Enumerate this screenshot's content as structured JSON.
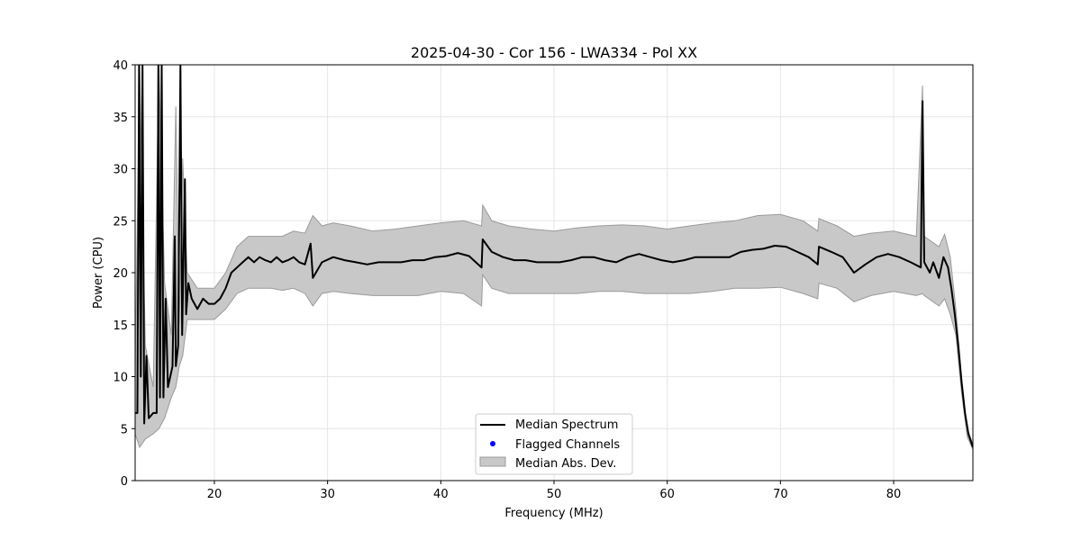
{
  "chart_data": {
    "type": "line",
    "title": "2025-04-30 - Cor 156 - LWA334 - Pol XX",
    "xlabel": "Frequency (MHz)",
    "ylabel": "Power (CPU)",
    "xlim": [
      13,
      87
    ],
    "ylim": [
      0,
      40
    ],
    "xticks": [
      20,
      30,
      40,
      50,
      60,
      70,
      80
    ],
    "yticks": [
      0,
      5,
      10,
      15,
      20,
      25,
      30,
      35,
      40
    ],
    "grid": true,
    "legend_position": "lower-center",
    "legend": {
      "median": "Median Spectrum",
      "flagged": "Flagged Channels",
      "mad": "Median Abs. Dev."
    },
    "colors": {
      "median": "#000000",
      "flagged": "#0000ff",
      "mad_fill": "#c8c8c8",
      "mad_edge": "#9a9a9a",
      "grid": "#e6e6e6"
    },
    "series": [
      {
        "name": "Median Spectrum",
        "points": [
          [
            13.0,
            6.5
          ],
          [
            13.2,
            6.5
          ],
          [
            13.35,
            40
          ],
          [
            13.5,
            10
          ],
          [
            13.65,
            40
          ],
          [
            13.8,
            5.5
          ],
          [
            14.0,
            12
          ],
          [
            14.2,
            6
          ],
          [
            14.6,
            6.5
          ],
          [
            14.9,
            6.5
          ],
          [
            15.05,
            40
          ],
          [
            15.2,
            8
          ],
          [
            15.35,
            40
          ],
          [
            15.5,
            8
          ],
          [
            15.7,
            17.5
          ],
          [
            15.9,
            9
          ],
          [
            16.1,
            10
          ],
          [
            16.3,
            11
          ],
          [
            16.5,
            23.5
          ],
          [
            16.6,
            11
          ],
          [
            16.8,
            13
          ],
          [
            17.0,
            40
          ],
          [
            17.15,
            14
          ],
          [
            17.4,
            29
          ],
          [
            17.5,
            16
          ],
          [
            17.7,
            19
          ],
          [
            18.0,
            17.5
          ],
          [
            18.5,
            16.5
          ],
          [
            19.0,
            17.5
          ],
          [
            19.5,
            17
          ],
          [
            20.0,
            17
          ],
          [
            20.5,
            17.5
          ],
          [
            21.0,
            18.5
          ],
          [
            21.5,
            20
          ],
          [
            22.0,
            20.5
          ],
          [
            22.5,
            21
          ],
          [
            23.0,
            21.5
          ],
          [
            23.5,
            21
          ],
          [
            24.0,
            21.5
          ],
          [
            24.5,
            21.2
          ],
          [
            25.0,
            21
          ],
          [
            25.5,
            21.5
          ],
          [
            26.0,
            21
          ],
          [
            26.5,
            21.2
          ],
          [
            27.0,
            21.5
          ],
          [
            27.5,
            21
          ],
          [
            28.0,
            20.8
          ],
          [
            28.5,
            22.8
          ],
          [
            28.7,
            19.5
          ],
          [
            29.5,
            21
          ],
          [
            30.5,
            21.5
          ],
          [
            31.5,
            21.2
          ],
          [
            32.5,
            21
          ],
          [
            33.5,
            20.8
          ],
          [
            34.5,
            21
          ],
          [
            35.5,
            21
          ],
          [
            36.5,
            21
          ],
          [
            37.5,
            21.2
          ],
          [
            38.5,
            21.2
          ],
          [
            39.5,
            21.5
          ],
          [
            40.5,
            21.6
          ],
          [
            41.5,
            21.9
          ],
          [
            42.5,
            21.6
          ],
          [
            43.6,
            20.5
          ],
          [
            43.7,
            23.2
          ],
          [
            44.5,
            22
          ],
          [
            45.5,
            21.5
          ],
          [
            46.5,
            21.2
          ],
          [
            47.5,
            21.2
          ],
          [
            48.5,
            21
          ],
          [
            49.5,
            21
          ],
          [
            50.5,
            21
          ],
          [
            51.5,
            21.2
          ],
          [
            52.5,
            21.5
          ],
          [
            53.5,
            21.5
          ],
          [
            54.5,
            21.2
          ],
          [
            55.5,
            21
          ],
          [
            56.5,
            21.5
          ],
          [
            57.5,
            21.8
          ],
          [
            58.5,
            21.5
          ],
          [
            59.5,
            21.2
          ],
          [
            60.5,
            21
          ],
          [
            61.5,
            21.2
          ],
          [
            62.5,
            21.5
          ],
          [
            63.5,
            21.5
          ],
          [
            64.5,
            21.5
          ],
          [
            65.5,
            21.5
          ],
          [
            66.5,
            22
          ],
          [
            67.5,
            22.2
          ],
          [
            68.5,
            22.3
          ],
          [
            69.5,
            22.6
          ],
          [
            70.5,
            22.5
          ],
          [
            71.5,
            22
          ],
          [
            72.5,
            21.5
          ],
          [
            73.3,
            20.8
          ],
          [
            73.4,
            22.5
          ],
          [
            74.5,
            22
          ],
          [
            75.5,
            21.5
          ],
          [
            76.5,
            20
          ],
          [
            77.5,
            20.8
          ],
          [
            78.5,
            21.5
          ],
          [
            79.5,
            21.8
          ],
          [
            80.5,
            21.5
          ],
          [
            81.5,
            21
          ],
          [
            82.4,
            20.5
          ],
          [
            82.55,
            36.5
          ],
          [
            82.7,
            21
          ],
          [
            83.2,
            20
          ],
          [
            83.5,
            21
          ],
          [
            84.0,
            19.5
          ],
          [
            84.4,
            21.5
          ],
          [
            84.8,
            20.5
          ],
          [
            85.1,
            18.5
          ],
          [
            85.4,
            16
          ],
          [
            85.7,
            13
          ],
          [
            86.0,
            9.5
          ],
          [
            86.3,
            6.5
          ],
          [
            86.6,
            4.5
          ],
          [
            87.0,
            3.2
          ]
        ]
      },
      {
        "name": "Median Abs. Dev.",
        "upper": [
          [
            13.0,
            10
          ],
          [
            13.4,
            40
          ],
          [
            13.9,
            13
          ],
          [
            14.6,
            9
          ],
          [
            15.1,
            40
          ],
          [
            15.6,
            19
          ],
          [
            16.2,
            14
          ],
          [
            16.6,
            36
          ],
          [
            16.9,
            15
          ],
          [
            17.2,
            31
          ],
          [
            17.6,
            20
          ],
          [
            18.5,
            18.5
          ],
          [
            20.0,
            18.5
          ],
          [
            21.0,
            20
          ],
          [
            22.0,
            22.5
          ],
          [
            23.0,
            23.5
          ],
          [
            24.0,
            23.5
          ],
          [
            25.0,
            23.5
          ],
          [
            26.0,
            23.5
          ],
          [
            27.0,
            24
          ],
          [
            28.0,
            23.8
          ],
          [
            28.7,
            25.5
          ],
          [
            29.5,
            24.5
          ],
          [
            30.5,
            24.8
          ],
          [
            32.0,
            24.5
          ],
          [
            34.0,
            24
          ],
          [
            36.0,
            24.2
          ],
          [
            38.0,
            24.5
          ],
          [
            40.0,
            24.8
          ],
          [
            42.0,
            25
          ],
          [
            43.6,
            24.5
          ],
          [
            43.7,
            26.5
          ],
          [
            44.5,
            25
          ],
          [
            46.0,
            24.5
          ],
          [
            48.0,
            24.2
          ],
          [
            50.0,
            24
          ],
          [
            52.0,
            24.3
          ],
          [
            54.0,
            24.5
          ],
          [
            56.0,
            24.6
          ],
          [
            58.0,
            24.5
          ],
          [
            60.0,
            24.2
          ],
          [
            62.0,
            24.5
          ],
          [
            64.0,
            24.8
          ],
          [
            66.0,
            25
          ],
          [
            68.0,
            25.5
          ],
          [
            70.0,
            25.6
          ],
          [
            72.0,
            25
          ],
          [
            73.3,
            24
          ],
          [
            73.4,
            25.2
          ],
          [
            75.0,
            24.5
          ],
          [
            76.5,
            23.5
          ],
          [
            78.0,
            23.8
          ],
          [
            80.0,
            24
          ],
          [
            82.0,
            23.5
          ],
          [
            82.55,
            38
          ],
          [
            82.7,
            23.5
          ],
          [
            84.0,
            22.5
          ],
          [
            84.5,
            23.7
          ],
          [
            85.0,
            21.5
          ],
          [
            85.5,
            16.5
          ],
          [
            86.0,
            10
          ],
          [
            86.5,
            5
          ],
          [
            87.0,
            3.5
          ]
        ],
        "lower": [
          [
            13.0,
            4.5
          ],
          [
            13.4,
            3.2
          ],
          [
            13.9,
            4
          ],
          [
            14.6,
            4.5
          ],
          [
            15.1,
            5
          ],
          [
            15.6,
            6
          ],
          [
            16.2,
            8
          ],
          [
            16.6,
            9
          ],
          [
            16.9,
            11
          ],
          [
            17.2,
            12
          ],
          [
            17.6,
            15.5
          ],
          [
            18.5,
            15.5
          ],
          [
            20.0,
            15.5
          ],
          [
            21.0,
            16.5
          ],
          [
            22.0,
            18
          ],
          [
            23.0,
            18.5
          ],
          [
            24.0,
            18.5
          ],
          [
            25.0,
            18.5
          ],
          [
            26.0,
            18.3
          ],
          [
            27.0,
            18.5
          ],
          [
            28.0,
            18
          ],
          [
            28.7,
            16.8
          ],
          [
            29.5,
            18
          ],
          [
            30.5,
            18.2
          ],
          [
            32.0,
            18
          ],
          [
            34.0,
            17.8
          ],
          [
            36.0,
            17.8
          ],
          [
            38.0,
            17.8
          ],
          [
            40.0,
            18.2
          ],
          [
            42.0,
            18
          ],
          [
            43.6,
            16.8
          ],
          [
            43.7,
            19.8
          ],
          [
            44.5,
            18.5
          ],
          [
            46.0,
            18
          ],
          [
            48.0,
            18
          ],
          [
            50.0,
            18
          ],
          [
            52.0,
            18
          ],
          [
            54.0,
            18.2
          ],
          [
            56.0,
            18.2
          ],
          [
            58.0,
            18
          ],
          [
            60.0,
            18
          ],
          [
            62.0,
            18
          ],
          [
            64.0,
            18.2
          ],
          [
            66.0,
            18.5
          ],
          [
            68.0,
            18.5
          ],
          [
            70.0,
            18.6
          ],
          [
            72.0,
            18
          ],
          [
            73.3,
            17.5
          ],
          [
            73.4,
            19
          ],
          [
            75.0,
            18.5
          ],
          [
            76.5,
            17.2
          ],
          [
            78.0,
            17.8
          ],
          [
            80.0,
            18.2
          ],
          [
            82.0,
            17.8
          ],
          [
            82.55,
            18
          ],
          [
            82.7,
            17.8
          ],
          [
            84.0,
            16.8
          ],
          [
            84.5,
            17.5
          ],
          [
            85.0,
            16
          ],
          [
            85.5,
            14
          ],
          [
            86.0,
            8.5
          ],
          [
            86.5,
            4.2
          ],
          [
            87.0,
            3
          ]
        ]
      },
      {
        "name": "Flagged Channels",
        "points": []
      }
    ]
  }
}
